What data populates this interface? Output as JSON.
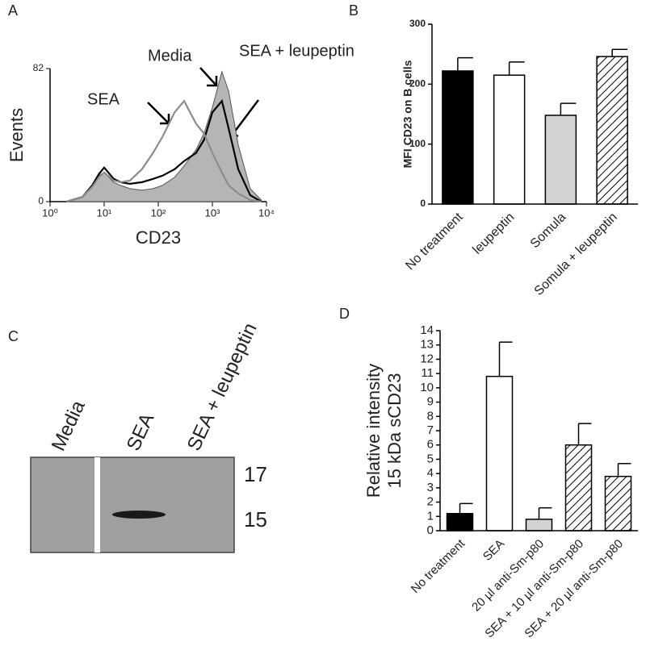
{
  "chart_data": [
    {
      "type": "line",
      "panel": "A",
      "ylabel": "Events",
      "xlabel": "CD23",
      "xscale": "log",
      "xlim": [
        1,
        10000
      ],
      "xticks": [
        {
          "value": 1,
          "label": "10⁰"
        },
        {
          "value": 10,
          "label": "10¹"
        },
        {
          "value": 100,
          "label": "10²"
        },
        {
          "value": 1000,
          "label": "10³"
        },
        {
          "value": 10000,
          "label": "10⁴"
        }
      ],
      "ylim": [
        0,
        82
      ],
      "yticks": [
        0,
        82
      ],
      "x": [
        2,
        4,
        6,
        8,
        10,
        15,
        20,
        30,
        50,
        80,
        120,
        200,
        300,
        500,
        700,
        1000,
        1500,
        2000,
        3000,
        5000,
        8000
      ],
      "series": [
        {
          "name": "SEA + leupeptin",
          "color": "#b5b5b5",
          "filled": true,
          "values": [
            0,
            3,
            10,
            16,
            18,
            12,
            10,
            8,
            7,
            8,
            10,
            15,
            22,
            32,
            42,
            58,
            80,
            68,
            35,
            8,
            1
          ]
        },
        {
          "name": "Media",
          "color": "#000000",
          "filled": false,
          "values": [
            0,
            3,
            10,
            17,
            21,
            14,
            12,
            11,
            12,
            14,
            16,
            20,
            25,
            30,
            38,
            55,
            62,
            45,
            20,
            4,
            0
          ]
        },
        {
          "name": "SEA",
          "color": "#8c8c8c",
          "filled": false,
          "values": [
            0,
            3,
            9,
            15,
            18,
            13,
            12,
            13,
            20,
            30,
            40,
            55,
            62,
            48,
            42,
            30,
            18,
            10,
            5,
            1,
            0
          ]
        }
      ]
    },
    {
      "type": "bar",
      "panel": "B",
      "ylabel": "MFI CD23 on B cells",
      "categories": [
        "No treatment",
        "leupeptin",
        "Somula",
        "Somula + leupeptin"
      ],
      "values": [
        222,
        215,
        148,
        246
      ],
      "errors": [
        22,
        22,
        20,
        12
      ],
      "colors": [
        "#000000",
        "#ffffff",
        "#d3d3d3",
        "#ffffff"
      ],
      "hatch": [
        false,
        false,
        false,
        true
      ],
      "ylim": [
        0,
        300
      ],
      "yticks": [
        0,
        100,
        200,
        300
      ]
    },
    {
      "type": "blot",
      "panel": "C",
      "lanes": [
        "Media",
        "SEA",
        "SEA + leupeptin"
      ],
      "markers": [
        17,
        15
      ]
    },
    {
      "type": "bar",
      "panel": "D",
      "ylabel": [
        "Relative intensity",
        "15 kDa sCD23"
      ],
      "categories": [
        "No treatment",
        "SEA",
        "20 µl anti-Sm-p80",
        "SEA + 10 µl anti-Sm-p80",
        "SEA + 20 µl anti-Sm-p80"
      ],
      "values": [
        1.2,
        10.8,
        0.8,
        6.0,
        3.8
      ],
      "errors": [
        0.7,
        2.4,
        0.8,
        1.5,
        0.9
      ],
      "colors": [
        "#000000",
        "#ffffff",
        "#d3d3d3",
        "#ffffff",
        "#ffffff"
      ],
      "hatch": [
        false,
        false,
        false,
        true,
        true
      ],
      "ylim": [
        0,
        14
      ],
      "yticks": [
        0,
        1,
        2,
        3,
        4,
        5,
        6,
        7,
        8,
        9,
        10,
        11,
        12,
        13,
        14
      ]
    }
  ]
}
